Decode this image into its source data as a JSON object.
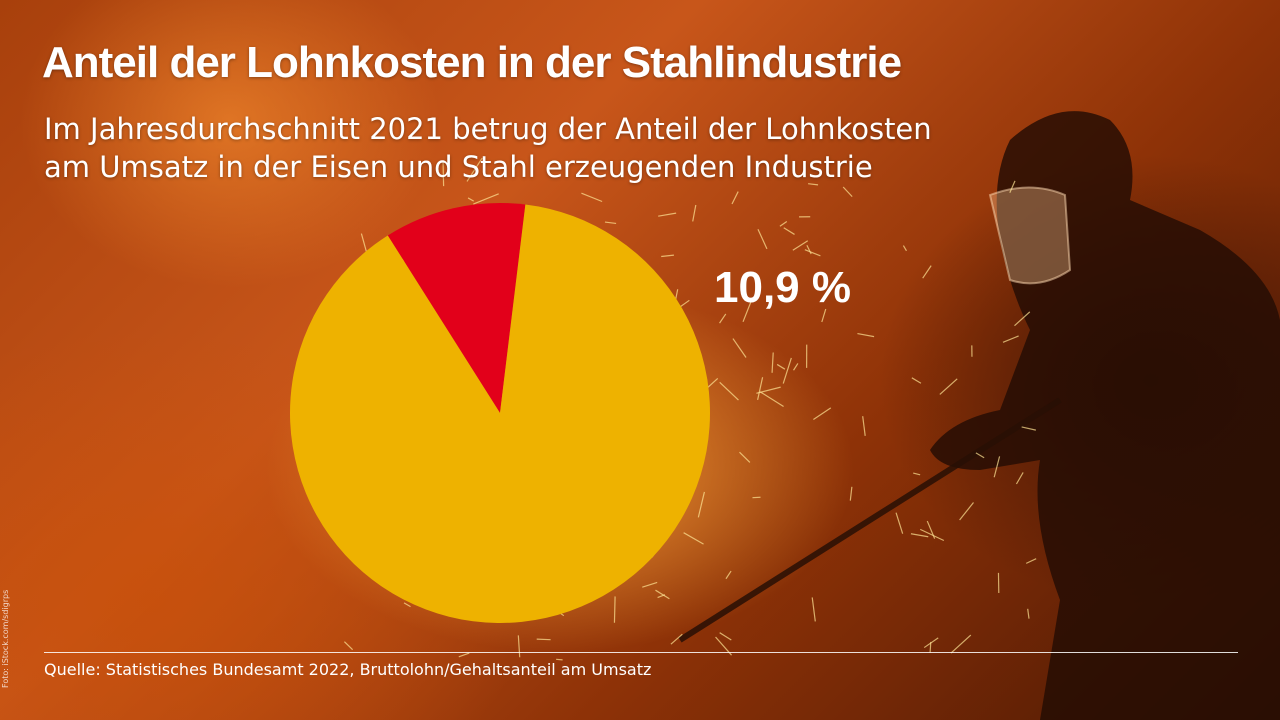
{
  "header": {
    "title": "Anteil der Lohnkosten in der Stahlindustrie",
    "subtitle_line1": "Im Jahresdurchschnitt 2021 betrug der Anteil der Lohnkosten",
    "subtitle_line2": "am Umsatz in der Eisen und Stahl erzeugenden Industrie"
  },
  "footer": {
    "source": "Quelle: Statistisches Bundesamt 2022, Bruttolohn/Gehaltsanteil am Umsatz",
    "photo_credit": "Foto: iStock.com/sdigrps"
  },
  "colors": {
    "highlight_slice": "#e2001a",
    "rest_slice": "#eeb200",
    "text": "#ffffff"
  },
  "chart_data": {
    "type": "pie",
    "title": "Anteil der Lohnkosten in der Stahlindustrie",
    "slices": [
      {
        "value": 10.9,
        "label": "10,9 %",
        "color": "#e2001a"
      },
      {
        "value": 89.1,
        "label": "",
        "color": "#eeb200"
      }
    ],
    "unit": "%"
  }
}
